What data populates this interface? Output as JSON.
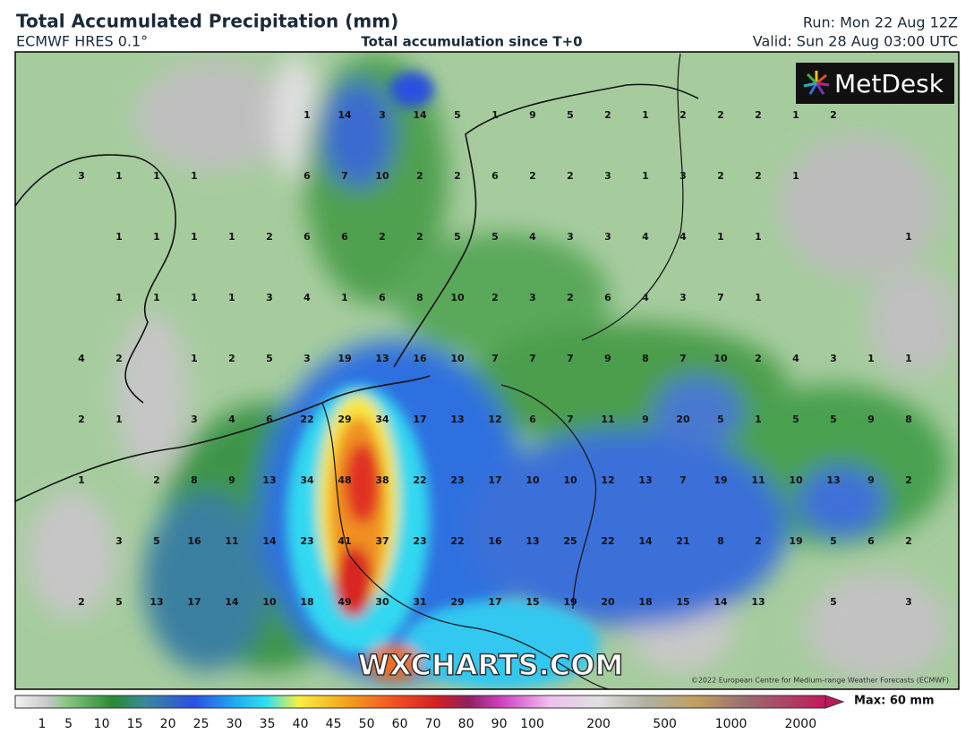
{
  "header": {
    "title": "Total Accumulated Precipitation (mm)",
    "model": "ECMWF HRES 0.1°",
    "subtitle": "Total accumulation since T+0",
    "run": "Run: Mon 22 Aug 12Z",
    "valid": "Valid: Sun 28 Aug 03:00 UTC"
  },
  "logo": "MetDesk",
  "watermark": "WXCHARTS.COM",
  "copyright": "©2022 European Centre for Medium-range Weather Forecasts (ECMWF)",
  "grid": [
    [
      null,
      null,
      null,
      null,
      null,
      null,
      1,
      14,
      3,
      14,
      5,
      1,
      9,
      5,
      2,
      1,
      2,
      2,
      2,
      1,
      2,
      null,
      null
    ],
    [
      3,
      1,
      1,
      1,
      null,
      null,
      6,
      7,
      10,
      2,
      2,
      6,
      2,
      2,
      3,
      1,
      3,
      2,
      2,
      1,
      null,
      null,
      null
    ],
    [
      null,
      1,
      1,
      1,
      1,
      2,
      6,
      6,
      2,
      2,
      5,
      5,
      4,
      3,
      3,
      4,
      4,
      1,
      1,
      null,
      null,
      null,
      1
    ],
    [
      null,
      1,
      1,
      1,
      1,
      3,
      4,
      1,
      6,
      8,
      10,
      2,
      3,
      2,
      6,
      4,
      3,
      7,
      1,
      null,
      null,
      null,
      null
    ],
    [
      4,
      2,
      null,
      1,
      2,
      5,
      3,
      19,
      13,
      16,
      10,
      7,
      7,
      7,
      9,
      8,
      7,
      10,
      2,
      4,
      3,
      1,
      1
    ],
    [
      2,
      1,
      null,
      3,
      4,
      6,
      22,
      29,
      34,
      17,
      13,
      12,
      6,
      7,
      11,
      9,
      20,
      5,
      1,
      5,
      5,
      9,
      8
    ],
    [
      1,
      null,
      2,
      8,
      9,
      13,
      34,
      48,
      38,
      22,
      23,
      17,
      10,
      10,
      12,
      13,
      7,
      19,
      11,
      10,
      13,
      9,
      2
    ],
    [
      null,
      3,
      5,
      16,
      11,
      14,
      23,
      41,
      37,
      23,
      22,
      16,
      13,
      25,
      22,
      14,
      21,
      8,
      2,
      19,
      5,
      6,
      2
    ],
    [
      2,
      5,
      13,
      17,
      14,
      10,
      18,
      49,
      30,
      31,
      29,
      17,
      15,
      19,
      20,
      18,
      15,
      14,
      13,
      null,
      5,
      null,
      3
    ]
  ],
  "colorbar": {
    "labels": [
      1,
      5,
      10,
      15,
      20,
      25,
      30,
      35,
      40,
      45,
      50,
      60,
      70,
      80,
      90,
      100,
      200,
      500,
      1000,
      2000
    ],
    "max_label": "Max: 60 mm"
  }
}
